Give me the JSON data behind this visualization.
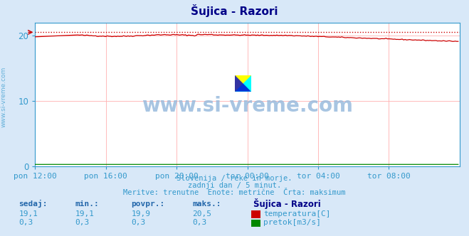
{
  "title": "Šujica - Razori",
  "bg_color": "#d8e8f8",
  "plot_bg_color": "#ffffff",
  "grid_color": "#ffb0b0",
  "x_tick_labels": [
    "pon 12:00",
    "pon 16:00",
    "pon 20:00",
    "tor 00:00",
    "tor 04:00",
    "tor 08:00"
  ],
  "y_ticks": [
    0,
    10,
    20
  ],
  "ylim": [
    0,
    22
  ],
  "xlim_max": 288,
  "temp_color": "#cc0000",
  "flow_color": "#008800",
  "max_line_color": "#cc0000",
  "max_line_value": 20.5,
  "subtitle1": "Slovenija / reke in morje.",
  "subtitle2": "zadnji dan / 5 minut.",
  "subtitle3": "Meritve: trenutne  Enote: metrične  Črta: maksimum",
  "watermark": "www.si-vreme.com",
  "legend_title": "Šujica - Razori",
  "legend_temp": "temperatura[C]",
  "legend_flow": "pretok[m3/s]",
  "header_sedaj": "sedaj:",
  "header_min": "min.:",
  "header_povpr": "povpr.:",
  "header_maks": "maks.:",
  "val_temp_sedaj": "19,1",
  "val_temp_min": "19,1",
  "val_temp_povpr": "19,9",
  "val_temp_maks": "20,5",
  "val_flow_sedaj": "0,3",
  "val_flow_min": "0,3",
  "val_flow_povpr": "0,3",
  "val_flow_maks": "0,3",
  "label_color": "#3399cc",
  "title_color": "#000088",
  "watermark_color": "#99bbdd",
  "subtitle_color": "#3399cc",
  "stat_header_color": "#2266aa",
  "stat_val_color": "#3399cc"
}
